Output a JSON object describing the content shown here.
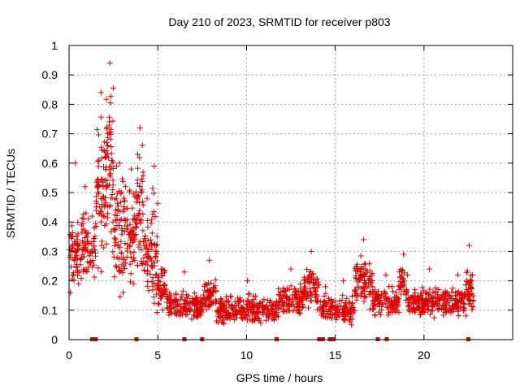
{
  "chart_data": {
    "type": "scatter",
    "title": "Day 210 of 2023, SRMTID for receiver p803",
    "xlabel": "GPS time / hours",
    "ylabel": "SRMTID / TECUs",
    "xlim": [
      0,
      25
    ],
    "ylim": [
      0,
      1
    ],
    "xticks": [
      0,
      5,
      10,
      15,
      20
    ],
    "yticks": [
      0,
      0.1,
      0.2,
      0.3,
      0.4,
      0.5,
      0.6,
      0.7,
      0.8,
      0.9,
      1
    ],
    "xtick_labels": [
      "0",
      "5",
      "10",
      "15",
      "20"
    ],
    "ytick_labels": [
      "0",
      "0.1",
      "0.2",
      "0.3",
      "0.4",
      "0.5",
      "0.6",
      "0.7",
      "0.8",
      "0.9",
      "1"
    ],
    "grid": true,
    "legend": "none",
    "series": [
      {
        "name": "SRMTID",
        "color": "#dd0000",
        "marker": "plus",
        "segments": [
          {
            "x0": 0.0,
            "x1": 0.7,
            "base": 0.28,
            "spread": 0.1,
            "n": 60,
            "peak": 0.6
          },
          {
            "x0": 0.7,
            "x1": 1.1,
            "base": 0.33,
            "spread": 0.09,
            "n": 40,
            "peak": 0.52
          },
          {
            "x0": 1.1,
            "x1": 1.5,
            "base": 0.3,
            "spread": 0.08,
            "n": 25,
            "peak": 0.42
          },
          {
            "x0": 1.5,
            "x1": 2.1,
            "base": 0.5,
            "spread": 0.2,
            "n": 70,
            "peak": 0.84
          },
          {
            "x0": 2.1,
            "x1": 2.5,
            "base": 0.6,
            "spread": 0.25,
            "n": 55,
            "peak": 0.94
          },
          {
            "x0": 2.5,
            "x1": 3.2,
            "base": 0.38,
            "spread": 0.17,
            "n": 75,
            "peak": 0.6
          },
          {
            "x0": 3.2,
            "x1": 3.8,
            "base": 0.36,
            "spread": 0.14,
            "n": 55,
            "peak": 0.58
          },
          {
            "x0": 3.8,
            "x1": 4.2,
            "base": 0.45,
            "spread": 0.17,
            "n": 45,
            "peak": 0.72
          },
          {
            "x0": 4.2,
            "x1": 4.6,
            "base": 0.28,
            "spread": 0.1,
            "n": 35,
            "peak": 0.48
          },
          {
            "x0": 4.6,
            "x1": 5.0,
            "base": 0.3,
            "spread": 0.18,
            "n": 45,
            "peak": 0.59
          },
          {
            "x0": 5.0,
            "x1": 5.5,
            "base": 0.17,
            "spread": 0.06,
            "n": 40,
            "peak": 0.24
          },
          {
            "x0": 5.5,
            "x1": 7.5,
            "base": 0.11,
            "spread": 0.04,
            "n": 150,
            "peak": 0.23
          },
          {
            "x0": 7.5,
            "x1": 8.3,
            "base": 0.15,
            "spread": 0.05,
            "n": 60,
            "peak": 0.27
          },
          {
            "x0": 8.3,
            "x1": 11.8,
            "base": 0.1,
            "spread": 0.04,
            "n": 260,
            "peak": 0.2
          },
          {
            "x0": 11.8,
            "x1": 13.2,
            "base": 0.14,
            "spread": 0.05,
            "n": 110,
            "peak": 0.24
          },
          {
            "x0": 13.2,
            "x1": 14.1,
            "base": 0.17,
            "spread": 0.06,
            "n": 70,
            "peak": 0.3
          },
          {
            "x0": 14.1,
            "x1": 14.8,
            "base": 0.11,
            "spread": 0.04,
            "n": 45,
            "peak": 0.18
          },
          {
            "x0": 14.8,
            "x1": 16.1,
            "base": 0.1,
            "spread": 0.04,
            "n": 90,
            "peak": 0.2
          },
          {
            "x0": 16.1,
            "x1": 17.1,
            "base": 0.2,
            "spread": 0.07,
            "n": 85,
            "peak": 0.34
          },
          {
            "x0": 17.1,
            "x1": 18.6,
            "base": 0.13,
            "spread": 0.04,
            "n": 110,
            "peak": 0.22
          },
          {
            "x0": 18.6,
            "x1": 19.1,
            "base": 0.18,
            "spread": 0.05,
            "n": 35,
            "peak": 0.29
          },
          {
            "x0": 19.1,
            "x1": 21.5,
            "base": 0.13,
            "spread": 0.04,
            "n": 180,
            "peak": 0.24
          },
          {
            "x0": 21.5,
            "x1": 22.3,
            "base": 0.13,
            "spread": 0.04,
            "n": 60,
            "peak": 0.22
          },
          {
            "x0": 22.3,
            "x1": 22.8,
            "base": 0.16,
            "spread": 0.07,
            "n": 45,
            "peak": 0.32
          }
        ],
        "baseline_marks_x": [
          1.3,
          1.5,
          3.8,
          6.5,
          7.5,
          11.7,
          14.1,
          14.3,
          14.7,
          14.9,
          17.4,
          17.9,
          22.5
        ]
      }
    ]
  }
}
